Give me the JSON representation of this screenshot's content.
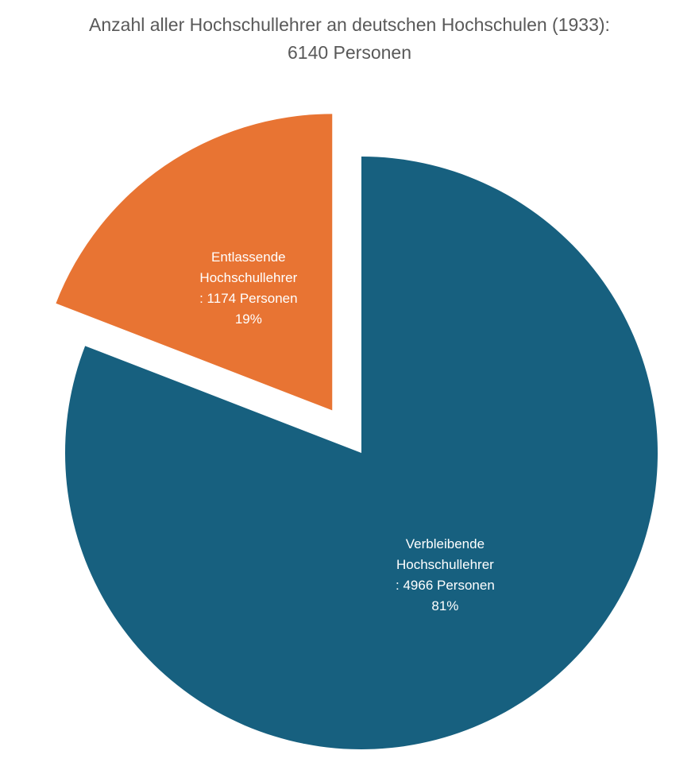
{
  "chart_data": {
    "type": "pie",
    "title": "Anzahl aller Hochschullehrer an deutschen Hochschulen (1933):",
    "subtitle": "6140 Personen",
    "categories": [
      "Verbleibende Hochschullehrer",
      "Entlassende Hochschullehrer"
    ],
    "values": [
      4966,
      1174
    ],
    "value_labels": [
      ": 4966 Personen",
      ": 1174 Personen"
    ],
    "percent_labels": [
      "81%",
      "19%"
    ],
    "colors": [
      "#17607f",
      "#e87433"
    ],
    "exploded": [
      false,
      true
    ]
  }
}
